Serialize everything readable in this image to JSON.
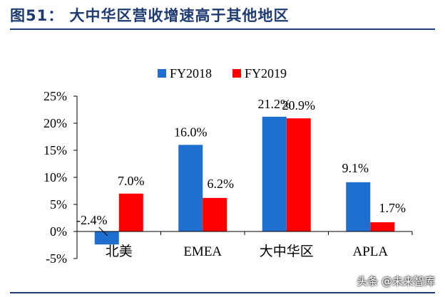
{
  "header": {
    "title": "图51：  大中华区营收增速高于其他地区"
  },
  "watermark": "头条 @未来智库",
  "chart_data": {
    "type": "bar",
    "title": "图51：  大中华区营收增速高于其他地区",
    "categories": [
      "北美",
      "EMEA",
      "大中华区",
      "APLA"
    ],
    "series": [
      {
        "name": "FY2018",
        "color": "#1f6fd0",
        "values": [
          -2.4,
          16.0,
          21.2,
          9.1
        ],
        "labels": [
          "-2.4%",
          "16.0%",
          "21.2%",
          "9.1%"
        ]
      },
      {
        "name": "FY2019",
        "color": "#ff0000",
        "values": [
          7.0,
          6.2,
          20.9,
          1.7
        ],
        "labels": [
          "7.0%",
          "6.2%",
          "20.9%",
          "1.7%"
        ]
      }
    ],
    "ylim": [
      -5,
      25
    ],
    "yticks": [
      -5,
      0,
      5,
      10,
      15,
      20,
      25
    ],
    "ytick_labels": [
      "-5%",
      "0%",
      "5%",
      "10%",
      "15%",
      "20%",
      "25%"
    ],
    "xlabel": "",
    "ylabel": "",
    "legend": "top-center",
    "grid": false
  }
}
